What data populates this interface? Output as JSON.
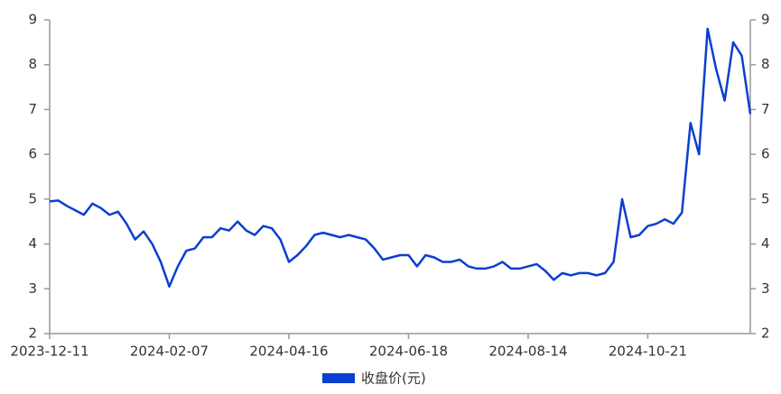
{
  "chart_data": {
    "type": "line",
    "categories": [
      "2023-12-11",
      null,
      null,
      null,
      null,
      null,
      null,
      null,
      null,
      null,
      null,
      null,
      null,
      null,
      "2024-02-07",
      null,
      null,
      null,
      null,
      null,
      null,
      null,
      null,
      null,
      null,
      null,
      null,
      null,
      "2024-04-16",
      null,
      null,
      null,
      null,
      null,
      null,
      null,
      null,
      null,
      null,
      null,
      null,
      null,
      "2024-06-18",
      null,
      null,
      null,
      null,
      null,
      null,
      null,
      null,
      null,
      null,
      null,
      null,
      null,
      "2024-08-14",
      null,
      null,
      null,
      null,
      null,
      null,
      null,
      null,
      null,
      null,
      null,
      null,
      null,
      "2024-10-21",
      null,
      null,
      null,
      null,
      null,
      null,
      null,
      null,
      null,
      null,
      null,
      null
    ],
    "series": [
      {
        "name": "收盘价(元)",
        "color": "#0a3fd0",
        "values": [
          4.95,
          4.97,
          4.85,
          4.75,
          4.65,
          4.9,
          4.8,
          4.65,
          4.72,
          4.45,
          4.1,
          4.28,
          4.0,
          3.6,
          3.05,
          3.5,
          3.85,
          3.9,
          4.15,
          4.15,
          4.35,
          4.3,
          4.5,
          4.3,
          4.2,
          4.4,
          4.35,
          4.1,
          3.6,
          3.75,
          3.95,
          4.2,
          4.25,
          4.2,
          4.15,
          4.2,
          4.15,
          4.1,
          3.9,
          3.65,
          3.7,
          3.75,
          3.75,
          3.5,
          3.75,
          3.7,
          3.6,
          3.6,
          3.65,
          3.5,
          3.45,
          3.45,
          3.5,
          3.6,
          3.45,
          3.45,
          3.5,
          3.55,
          3.4,
          3.2,
          3.35,
          3.3,
          3.35,
          3.35,
          3.3,
          3.35,
          3.6,
          5.0,
          4.15,
          4.2,
          4.4,
          4.45,
          4.55,
          4.45,
          4.7,
          6.7,
          6.0,
          8.8,
          7.9,
          7.2,
          8.5,
          8.2,
          6.9
        ]
      }
    ],
    "ylim": [
      2,
      9
    ],
    "yticks": [
      2,
      3,
      4,
      5,
      6,
      7,
      8,
      9
    ],
    "y2lim": [
      2,
      9
    ],
    "y2ticks": [
      2,
      3,
      4,
      5,
      6,
      7,
      8,
      9
    ],
    "grid": false
  }
}
